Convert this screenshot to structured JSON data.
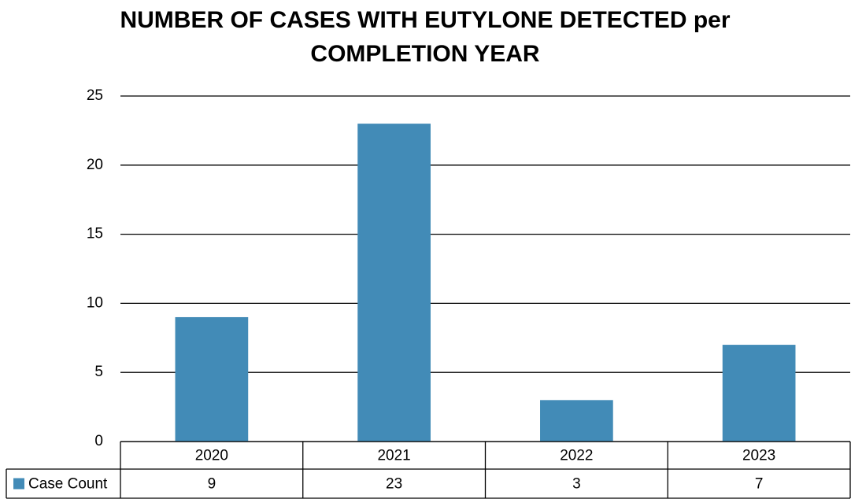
{
  "chart_data": {
    "type": "bar",
    "title": "NUMBER OF CASES WITH EUTYLONE DETECTED per COMPLETION YEAR",
    "categories": [
      "2020",
      "2021",
      "2022",
      "2023"
    ],
    "series": [
      {
        "name": "Case Count",
        "color": "#428bb7",
        "values": [
          9,
          23,
          3,
          7
        ]
      }
    ],
    "ylim": [
      0,
      25
    ],
    "yticks": [
      0,
      5,
      10,
      15,
      20,
      25
    ],
    "grid": true,
    "data_table": true
  }
}
